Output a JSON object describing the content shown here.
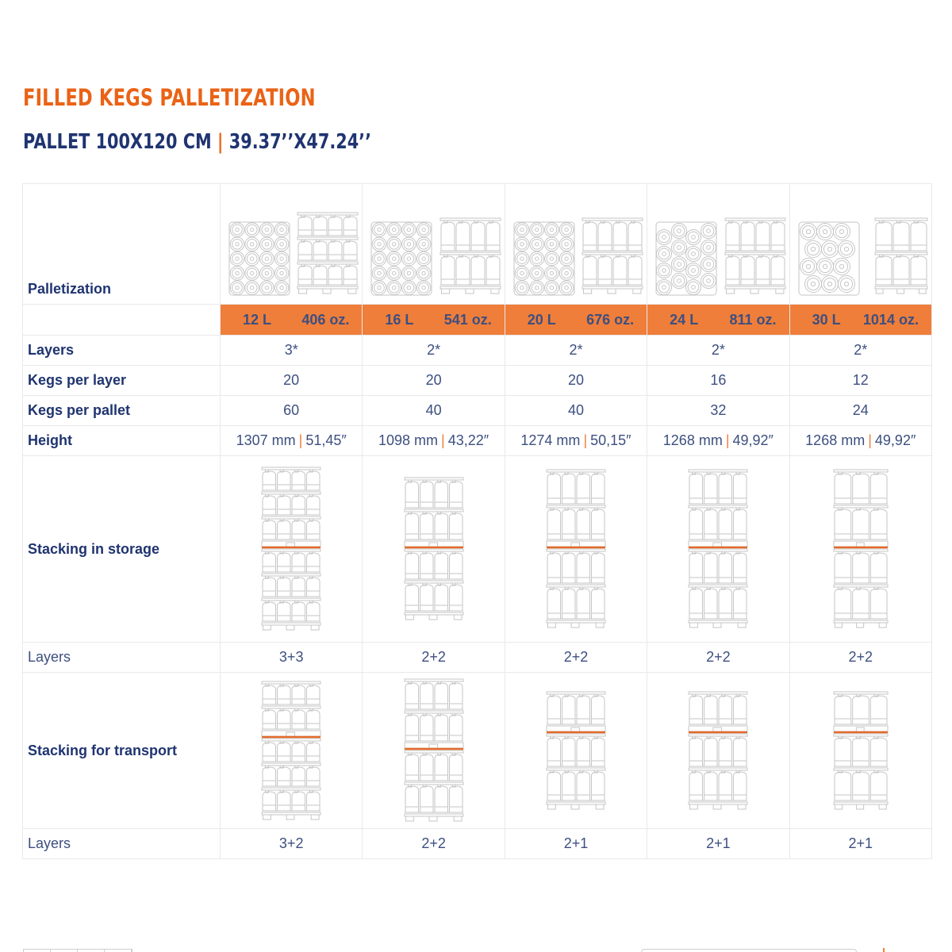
{
  "header": {
    "title": "FILLED KEGS PALLETIZATION",
    "subtitle_left": "PALLET 100X120 CM",
    "subtitle_sep": "|",
    "subtitle_right": "39.37’’X47.24’’"
  },
  "colors": {
    "accent_orange": "#ef7e3a",
    "title_orange": "#ea6316",
    "navy": "#1f3470",
    "value_text": "#3d4f80",
    "border": "#e9e9e9"
  },
  "table": {
    "row_labels": {
      "palletization": "Palletization",
      "layers": "Layers",
      "kegs_per_layer": "Kegs per layer",
      "kegs_per_pallet": "Kegs per pallet",
      "height": "Height",
      "stacking_storage": "Stacking in storage",
      "storage_layers": "Layers",
      "stacking_transport": "Stacking for transport",
      "transport_layers": "Layers"
    },
    "height_sep": "|",
    "columns": [
      {
        "volume": "12 L",
        "ounces": "406 oz.",
        "layers": "3*",
        "kegs_per_layer": "20",
        "kegs_per_pallet": "60",
        "height_mm": "1307 mm",
        "height_in": "51,45″",
        "storage_layers": "3+3",
        "transport_layers": "3+2",
        "layout_icon": "grid-4x5-top-view-icon",
        "side_icon": "pallet-side-3-layers-icon"
      },
      {
        "volume": "16 L",
        "ounces": "541 oz.",
        "layers": "2*",
        "kegs_per_layer": "20",
        "kegs_per_pallet": "40",
        "height_mm": "1098 mm",
        "height_in": "43,22″",
        "storage_layers": "2+2",
        "transport_layers": "2+2",
        "layout_icon": "grid-4x5-top-view-icon",
        "side_icon": "pallet-side-2-layers-icon"
      },
      {
        "volume": "20 L",
        "ounces": "676 oz.",
        "layers": "2*",
        "kegs_per_layer": "20",
        "kegs_per_pallet": "40",
        "height_mm": "1274 mm",
        "height_in": "50,15″",
        "storage_layers": "2+2",
        "transport_layers": "2+1",
        "layout_icon": "grid-4x5-top-view-icon",
        "side_icon": "pallet-side-2-layers-icon"
      },
      {
        "volume": "24 L",
        "ounces": "811 oz.",
        "layers": "2*",
        "kegs_per_layer": "16",
        "kegs_per_pallet": "32",
        "height_mm": "1268 mm",
        "height_in": "49,92″",
        "storage_layers": "2+2",
        "transport_layers": "2+1",
        "layout_icon": "staggered-16-top-view-icon",
        "side_icon": "pallet-side-2-layers-icon"
      },
      {
        "volume": "30 L",
        "ounces": "1014 oz.",
        "layers": "2*",
        "kegs_per_layer": "12",
        "kegs_per_pallet": "24",
        "height_mm": "1268 mm",
        "height_in": "49,92″",
        "storage_layers": "2+2",
        "transport_layers": "2+1",
        "layout_icon": "staggered-12-top-view-icon",
        "side_icon": "pallet-side-2-layers-3-wide-icon"
      }
    ]
  }
}
